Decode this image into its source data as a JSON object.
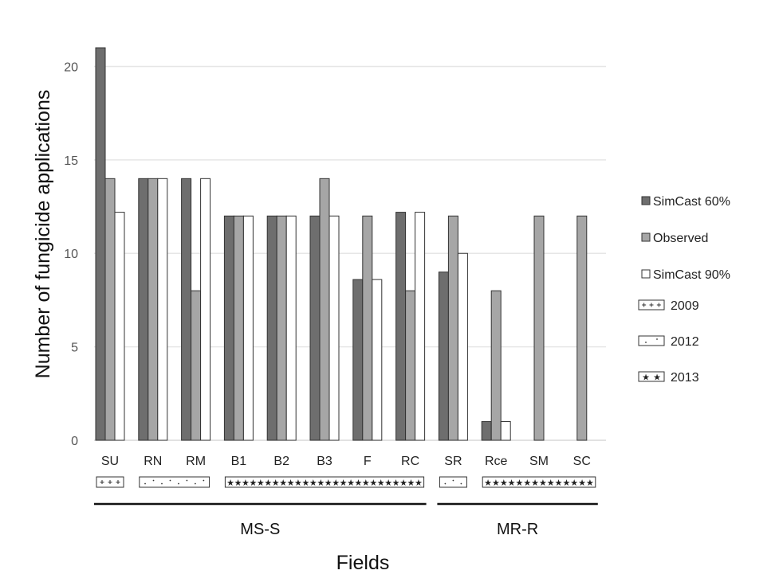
{
  "chart_data": {
    "type": "bar",
    "xlabel": "Fields",
    "ylabel": "Number of fungicide applications",
    "ylim": [
      0,
      21
    ],
    "yticks": [
      0,
      5,
      10,
      15,
      20
    ],
    "grid": true,
    "legend_position": "right",
    "categories": [
      "SU",
      "RN",
      "RM",
      "B1",
      "B2",
      "B3",
      "F",
      "RC",
      "SR",
      "Rce",
      "SM",
      "SC"
    ],
    "series": [
      {
        "name": "SimCast 60%",
        "color": "#6e6e6e",
        "values": [
          21,
          14,
          14,
          12,
          12,
          12,
          8.6,
          12.2,
          9,
          1,
          null,
          null
        ]
      },
      {
        "name": "Observed",
        "color": "#a6a6a6",
        "values": [
          14,
          14,
          8,
          12,
          12,
          14,
          12,
          8,
          12,
          8,
          12,
          12
        ]
      },
      {
        "name": "SimCast 90%",
        "color": "#ffffff",
        "values": [
          12.2,
          14,
          14,
          12,
          12,
          12,
          8.6,
          12.2,
          10,
          1,
          null,
          null
        ]
      }
    ],
    "years": [
      {
        "label": "2009",
        "pattern": "plus",
        "first": 0,
        "last": 0
      },
      {
        "label": "2012",
        "pattern": "dots",
        "first": 1,
        "last": 2
      },
      {
        "label": "2013",
        "pattern": "stars",
        "first": 3,
        "last": 7
      },
      {
        "label": "2012",
        "pattern": "dots",
        "first": 8,
        "last": 8
      },
      {
        "label": "2013",
        "pattern": "stars",
        "first": 9,
        "last": 11
      }
    ],
    "legend_years": [
      {
        "label": "2009",
        "pattern": "plus"
      },
      {
        "label": "2012",
        "pattern": "dots"
      },
      {
        "label": "2013",
        "pattern": "stars"
      }
    ],
    "groups": [
      {
        "label": "MS-S",
        "first": 0,
        "last": 7
      },
      {
        "label": "MR-R",
        "first": 8,
        "last": 11
      }
    ]
  }
}
